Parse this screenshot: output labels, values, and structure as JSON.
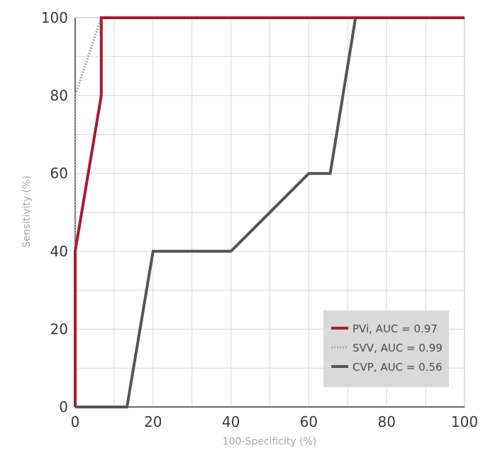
{
  "chart_data": {
    "type": "line",
    "title": "",
    "xlabel": "100-Specificity (%)",
    "ylabel": "Sensitivity (%)",
    "xlim": [
      0,
      100
    ],
    "ylim": [
      0,
      100
    ],
    "xticks": [
      0,
      20,
      40,
      60,
      80,
      100
    ],
    "yticks": [
      0,
      20,
      40,
      60,
      80,
      100
    ],
    "grid": true,
    "legend_position": "bottom-right",
    "series": [
      {
        "name": "PVi, AUC = 0.97",
        "color": "#a51c30",
        "style": "solid",
        "x": [
          0,
          0,
          0,
          6.7,
          6.7,
          100
        ],
        "y": [
          0,
          40,
          40,
          80,
          100,
          100
        ]
      },
      {
        "name": "SVV, AUC = 0.99",
        "color": "#a9a9a9",
        "style": "dotted",
        "x": [
          0,
          0,
          6.7,
          100
        ],
        "y": [
          0,
          80,
          100,
          100
        ]
      },
      {
        "name": "CVP, AUC = 0.56",
        "color": "#555459",
        "style": "solid",
        "x": [
          0,
          13.3,
          20,
          40,
          60,
          65.5,
          72,
          100
        ],
        "y": [
          0,
          0,
          40,
          40,
          60,
          60,
          100,
          100
        ]
      }
    ]
  }
}
